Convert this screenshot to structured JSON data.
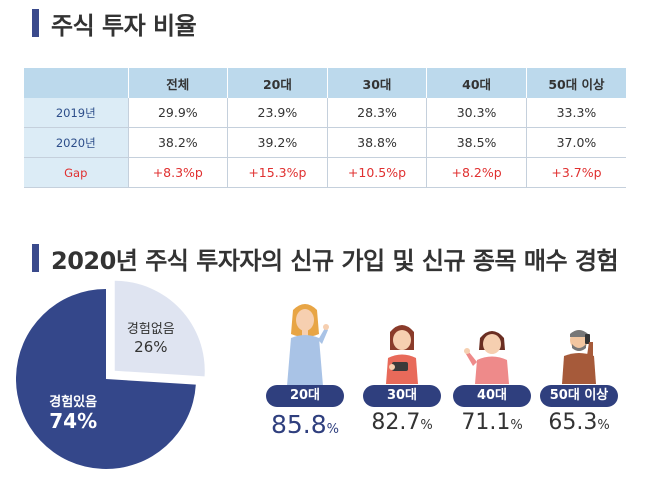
{
  "section1": {
    "title": "주식 투자 비율"
  },
  "section2": {
    "title": "2020년 주식 투자자의 신규 가입 및 신규 종목 매수 경험"
  },
  "table": {
    "headers": [
      "",
      "전체",
      "20대",
      "30대",
      "40대",
      "50대 이상"
    ],
    "rows": [
      {
        "label": "2019년",
        "cells": [
          "29.9%",
          "23.9%",
          "28.3%",
          "30.3%",
          "33.3%"
        ]
      },
      {
        "label": "2020년",
        "cells": [
          "38.2%",
          "39.2%",
          "38.8%",
          "38.5%",
          "37.0%"
        ]
      },
      {
        "label": "Gap",
        "cells": [
          "+8.3%p",
          "+15.3%p",
          "+10.5%p",
          "+8.2%p",
          "+3.7%p"
        ]
      }
    ]
  },
  "chart_data": [
    {
      "type": "pie",
      "categories": [
        "경험있음",
        "경험없음"
      ],
      "values": [
        74,
        26
      ],
      "labels": [
        "74%",
        "26%"
      ],
      "colors": [
        "#34478a",
        "#dfe4f1"
      ]
    },
    {
      "type": "bar",
      "categories": [
        "20대",
        "30대",
        "40대",
        "50대 이상"
      ],
      "values": [
        85.8,
        82.7,
        71.1,
        65.3
      ],
      "unit": "%"
    }
  ],
  "icons": [
    "woman-young-icon",
    "woman-phone-icon",
    "woman-middle-icon",
    "man-phone-icon"
  ],
  "colors": {
    "accent": "#3a4a8c",
    "table_header": "#bcd9ec",
    "gap_red": "#e03030"
  }
}
